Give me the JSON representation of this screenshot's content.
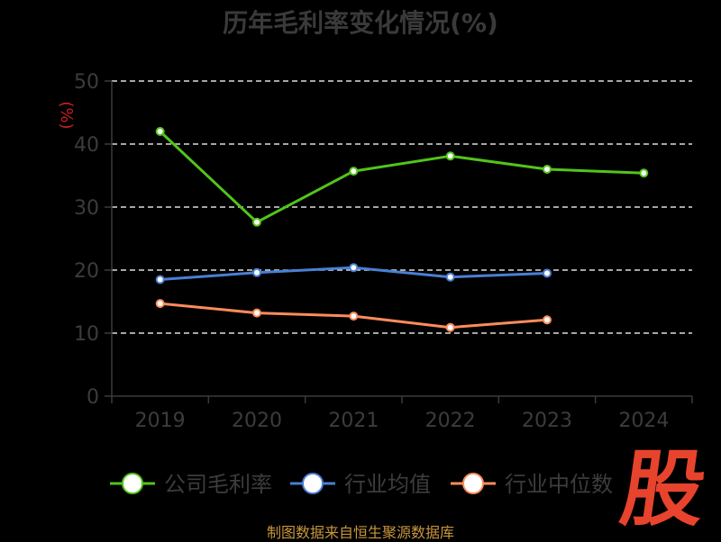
{
  "chart_data": {
    "type": "line",
    "title": "历年毛利率变化情况(%)",
    "ylabel": "(%)",
    "xlabel": "",
    "categories": [
      "2019",
      "2020",
      "2021",
      "2022",
      "2023",
      "2024"
    ],
    "ylim": [
      0,
      50
    ],
    "yticks": [
      0,
      10,
      20,
      30,
      40,
      50
    ],
    "grid": true,
    "legend_position": "bottom",
    "series": [
      {
        "name": "公司毛利率",
        "color": "#52c41a",
        "values": [
          42.0,
          27.6,
          35.7,
          38.1,
          36.0,
          35.4
        ]
      },
      {
        "name": "行业均值",
        "color": "#4a7fd4",
        "values": [
          18.5,
          19.6,
          20.4,
          18.9,
          19.5,
          null
        ]
      },
      {
        "name": "行业中位数",
        "color": "#ff8c5a",
        "values": [
          14.7,
          13.2,
          12.7,
          10.9,
          12.1,
          null
        ]
      }
    ]
  },
  "footer": {
    "source": "制图数据来自恒生聚源数据库",
    "watermark": "股"
  }
}
